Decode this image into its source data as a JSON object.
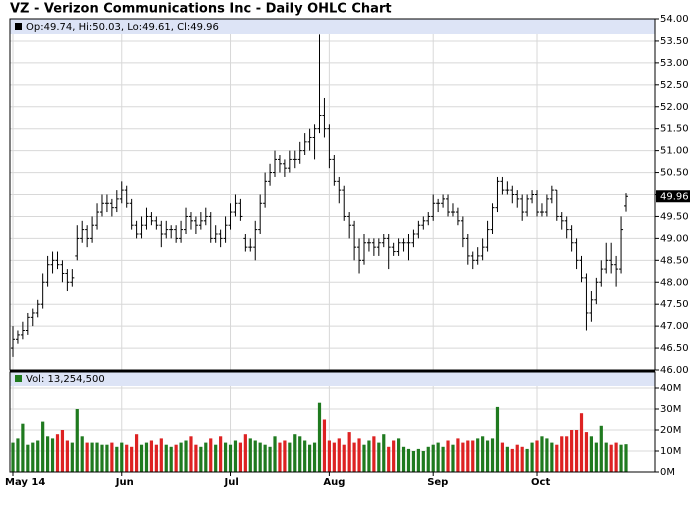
{
  "chart_data": {
    "type": "ohlc",
    "title": "VZ - Verizon Communications Inc - Daily OHLC Chart",
    "legend": "Op:49.74, Hi:50.03, Lo:49.61, Cl:49.96",
    "volume_legend": "Vol: 13,254,500",
    "bar_color": "#000000",
    "up_color": "#1f7a1f",
    "down_color": "#dd2222",
    "grid": true,
    "ylim": [
      46,
      54
    ],
    "yticks": [
      {
        "value": 46,
        "label": "46.00"
      },
      {
        "value": 46.5,
        "label": "46.50"
      },
      {
        "value": 47,
        "label": "47.00"
      },
      {
        "value": 47.5,
        "label": "47.50"
      },
      {
        "value": 48,
        "label": "48.00"
      },
      {
        "value": 48.5,
        "label": "48.50"
      },
      {
        "value": 49,
        "label": "49.00"
      },
      {
        "value": 49.5,
        "label": "49.50"
      },
      {
        "value": 50,
        "label": "50.00"
      },
      {
        "value": 50.5,
        "label": "50.50"
      },
      {
        "value": 51,
        "label": "51.00"
      },
      {
        "value": 51.5,
        "label": "51.50"
      },
      {
        "value": 52,
        "label": "52.00"
      },
      {
        "value": 52.5,
        "label": "52.50"
      },
      {
        "value": 53,
        "label": "53.00"
      },
      {
        "value": 53.5,
        "label": "53.50"
      },
      {
        "value": 54,
        "label": "54.00"
      }
    ],
    "vlim": [
      0,
      40000000
    ],
    "vticks": [
      {
        "value": 0,
        "label": "0M"
      },
      {
        "value": 10000000,
        "label": "10M"
      },
      {
        "value": 20000000,
        "label": "20M"
      },
      {
        "value": 30000000,
        "label": "30M"
      },
      {
        "value": 40000000,
        "label": "40M"
      }
    ],
    "xticks": [
      {
        "value": 0,
        "label": "May 14"
      },
      {
        "value": 22,
        "label": "Jun"
      },
      {
        "value": 44,
        "label": "Jul"
      },
      {
        "value": 64,
        "label": "Aug"
      },
      {
        "value": 85,
        "label": "Sep"
      },
      {
        "value": 106,
        "label": "Oct"
      }
    ],
    "ohlc": [
      [
        46.5,
        47.0,
        46.3,
        46.7
      ],
      [
        46.7,
        46.9,
        46.6,
        46.8
      ],
      [
        46.8,
        47.1,
        46.7,
        46.9
      ],
      [
        46.9,
        47.3,
        46.8,
        47.2
      ],
      [
        47.2,
        47.4,
        47.0,
        47.3
      ],
      [
        47.3,
        47.6,
        47.2,
        47.5
      ],
      [
        47.5,
        48.2,
        47.4,
        48.0
      ],
      [
        48.0,
        48.6,
        47.9,
        48.4
      ],
      [
        48.4,
        48.7,
        48.2,
        48.5
      ],
      [
        48.5,
        48.7,
        48.3,
        48.4
      ],
      [
        48.4,
        48.5,
        48.0,
        48.2
      ],
      [
        48.2,
        48.3,
        47.8,
        48.0
      ],
      [
        48.0,
        48.3,
        47.9,
        48.1
      ],
      [
        48.6,
        49.3,
        48.5,
        49.0
      ],
      [
        49.0,
        49.4,
        48.9,
        49.2
      ],
      [
        49.2,
        49.3,
        48.8,
        49.0
      ],
      [
        49.0,
        49.5,
        48.9,
        49.3
      ],
      [
        49.3,
        49.8,
        49.2,
        49.6
      ],
      [
        49.6,
        50.0,
        49.5,
        49.8
      ],
      [
        49.8,
        50.0,
        49.6,
        49.8
      ],
      [
        49.8,
        49.9,
        49.5,
        49.7
      ],
      [
        49.7,
        50.1,
        49.6,
        49.9
      ],
      [
        49.9,
        50.3,
        49.8,
        50.1
      ],
      [
        50.1,
        50.2,
        49.7,
        49.8
      ],
      [
        49.8,
        49.9,
        49.2,
        49.3
      ],
      [
        49.3,
        49.4,
        49.0,
        49.1
      ],
      [
        49.1,
        49.5,
        49.0,
        49.3
      ],
      [
        49.3,
        49.7,
        49.2,
        49.5
      ],
      [
        49.5,
        49.6,
        49.3,
        49.4
      ],
      [
        49.4,
        49.5,
        49.2,
        49.3
      ],
      [
        49.3,
        49.4,
        48.8,
        49.1
      ],
      [
        49.1,
        49.4,
        49.0,
        49.2
      ],
      [
        49.2,
        49.3,
        49.0,
        49.2
      ],
      [
        49.2,
        49.3,
        48.9,
        49.0
      ],
      [
        49.0,
        49.4,
        48.9,
        49.2
      ],
      [
        49.2,
        49.7,
        49.1,
        49.5
      ],
      [
        49.5,
        49.6,
        49.2,
        49.4
      ],
      [
        49.4,
        49.5,
        49.1,
        49.3
      ],
      [
        49.3,
        49.6,
        49.2,
        49.4
      ],
      [
        49.4,
        49.7,
        49.3,
        49.5
      ],
      [
        49.5,
        49.6,
        48.9,
        49.0
      ],
      [
        49.0,
        49.3,
        48.9,
        49.1
      ],
      [
        49.1,
        49.2,
        48.8,
        49.0
      ],
      [
        49.0,
        49.5,
        48.9,
        49.3
      ],
      [
        49.3,
        49.8,
        49.2,
        49.6
      ],
      [
        49.6,
        50.0,
        49.5,
        49.8
      ],
      [
        49.8,
        49.9,
        49.4,
        49.5
      ],
      [
        49.0,
        49.1,
        48.7,
        48.8
      ],
      [
        48.8,
        49.0,
        48.7,
        48.8
      ],
      [
        48.8,
        49.4,
        48.5,
        49.2
      ],
      [
        49.2,
        50.0,
        49.1,
        49.8
      ],
      [
        49.8,
        50.5,
        49.7,
        50.3
      ],
      [
        50.3,
        50.7,
        50.2,
        50.5
      ],
      [
        50.5,
        51.0,
        50.4,
        50.8
      ],
      [
        50.8,
        50.9,
        50.5,
        50.7
      ],
      [
        50.7,
        50.8,
        50.4,
        50.6
      ],
      [
        50.6,
        51.0,
        50.5,
        50.8
      ],
      [
        50.8,
        51.0,
        50.6,
        50.8
      ],
      [
        50.8,
        51.2,
        50.7,
        51.0
      ],
      [
        51.0,
        51.4,
        50.9,
        51.2
      ],
      [
        51.2,
        51.5,
        51.0,
        51.3
      ],
      [
        51.3,
        51.6,
        50.8,
        51.5
      ],
      [
        51.5,
        53.65,
        51.4,
        51.8
      ],
      [
        51.8,
        52.2,
        51.3,
        51.5
      ],
      [
        51.5,
        51.6,
        50.6,
        50.8
      ],
      [
        50.8,
        50.9,
        50.2,
        50.3
      ],
      [
        50.3,
        50.4,
        49.8,
        50.1
      ],
      [
        50.1,
        50.2,
        49.4,
        49.5
      ],
      [
        49.5,
        49.6,
        49.0,
        49.3
      ],
      [
        49.3,
        49.4,
        48.5,
        48.8
      ],
      [
        48.8,
        49.0,
        48.2,
        48.5
      ],
      [
        48.5,
        49.1,
        48.4,
        48.9
      ],
      [
        48.9,
        49.0,
        48.7,
        48.9
      ],
      [
        48.9,
        49.0,
        48.6,
        48.8
      ],
      [
        48.8,
        49.0,
        48.6,
        48.9
      ],
      [
        48.9,
        49.1,
        48.8,
        49.0
      ],
      [
        49.0,
        49.1,
        48.3,
        48.8
      ],
      [
        48.8,
        48.9,
        48.6,
        48.7
      ],
      [
        48.7,
        49.0,
        48.6,
        48.9
      ],
      [
        48.9,
        49.0,
        48.7,
        48.9
      ],
      [
        48.9,
        49.1,
        48.5,
        48.9
      ],
      [
        48.9,
        49.2,
        48.8,
        49.1
      ],
      [
        49.1,
        49.4,
        49.0,
        49.3
      ],
      [
        49.3,
        49.5,
        49.2,
        49.4
      ],
      [
        49.4,
        49.6,
        49.3,
        49.5
      ],
      [
        49.5,
        50.0,
        49.4,
        49.8
      ],
      [
        49.8,
        49.9,
        49.6,
        49.8
      ],
      [
        49.8,
        50.0,
        49.7,
        49.9
      ],
      [
        49.9,
        50.0,
        49.5,
        49.6
      ],
      [
        49.6,
        49.8,
        49.5,
        49.6
      ],
      [
        49.6,
        49.7,
        49.3,
        49.4
      ],
      [
        49.4,
        49.5,
        48.8,
        49.0
      ],
      [
        49.0,
        49.1,
        48.4,
        48.6
      ],
      [
        48.6,
        48.7,
        48.3,
        48.5
      ],
      [
        48.5,
        48.8,
        48.4,
        48.6
      ],
      [
        48.6,
        49.0,
        48.5,
        48.8
      ],
      [
        48.8,
        49.4,
        48.7,
        49.2
      ],
      [
        49.2,
        49.8,
        49.1,
        49.7
      ],
      [
        49.7,
        50.4,
        49.6,
        50.3
      ],
      [
        50.3,
        50.4,
        50.0,
        50.1
      ],
      [
        50.1,
        50.3,
        50.0,
        50.1
      ],
      [
        50.1,
        50.2,
        49.8,
        50.0
      ],
      [
        50.0,
        50.1,
        49.7,
        49.9
      ],
      [
        49.9,
        50.0,
        49.4,
        49.6
      ],
      [
        49.6,
        50.0,
        49.5,
        49.9
      ],
      [
        49.9,
        50.1,
        49.8,
        50.0
      ],
      [
        50.0,
        50.1,
        49.5,
        49.6
      ],
      [
        49.6,
        49.8,
        49.5,
        49.6
      ],
      [
        49.6,
        50.0,
        49.5,
        49.9
      ],
      [
        49.9,
        50.2,
        49.8,
        50.1
      ],
      [
        50.1,
        50.1,
        49.4,
        49.5
      ],
      [
        49.5,
        49.6,
        49.2,
        49.4
      ],
      [
        49.4,
        49.5,
        49.0,
        49.2
      ],
      [
        49.2,
        49.3,
        48.7,
        48.9
      ],
      [
        48.9,
        49.0,
        48.3,
        48.5
      ],
      [
        48.5,
        48.6,
        48.0,
        48.1
      ],
      [
        48.1,
        48.2,
        46.9,
        47.3
      ],
      [
        47.3,
        47.8,
        47.1,
        47.6
      ],
      [
        47.6,
        48.1,
        47.5,
        48.0
      ],
      [
        48.0,
        48.5,
        47.9,
        48.3
      ],
      [
        48.3,
        48.9,
        48.2,
        48.5
      ],
      [
        48.5,
        48.9,
        48.2,
        48.4
      ],
      [
        48.4,
        48.6,
        47.9,
        48.3
      ],
      [
        48.3,
        49.5,
        48.2,
        49.2
      ],
      [
        49.74,
        50.03,
        49.61,
        49.96
      ]
    ],
    "volume": [
      14000000,
      16000000,
      23000000,
      13000000,
      14000000,
      15000000,
      24000000,
      17000000,
      16000000,
      18000000,
      20000000,
      15000000,
      14000000,
      30000000,
      17000000,
      14000000,
      14000000,
      14000000,
      13000000,
      13000000,
      14000000,
      12000000,
      14000000,
      13000000,
      12000000,
      18000000,
      13000000,
      14000000,
      15000000,
      13000000,
      16000000,
      13000000,
      12000000,
      13000000,
      14000000,
      15000000,
      17000000,
      13000000,
      12000000,
      14000000,
      16000000,
      13000000,
      17000000,
      14000000,
      13000000,
      15000000,
      14000000,
      18000000,
      16000000,
      15000000,
      14000000,
      13000000,
      12000000,
      17000000,
      14000000,
      15000000,
      14000000,
      18000000,
      17000000,
      15000000,
      13000000,
      14000000,
      33000000,
      25000000,
      15000000,
      14000000,
      16000000,
      13000000,
      19000000,
      14000000,
      16000000,
      13000000,
      15000000,
      17000000,
      14000000,
      18000000,
      12000000,
      15000000,
      16000000,
      12000000,
      11000000,
      10000000,
      11000000,
      10000000,
      12000000,
      13000000,
      14000000,
      12000000,
      15000000,
      13000000,
      16000000,
      14000000,
      15000000,
      15000000,
      16000000,
      17000000,
      15000000,
      16000000,
      31000000,
      14000000,
      12000000,
      11000000,
      13000000,
      12000000,
      11000000,
      14000000,
      15000000,
      17000000,
      16000000,
      14000000,
      13000000,
      17000000,
      17000000,
      20000000,
      20000000,
      28000000,
      19000000,
      17000000,
      14000000,
      22000000,
      14000000,
      13000000,
      14000000,
      13000000,
      13254500
    ]
  }
}
